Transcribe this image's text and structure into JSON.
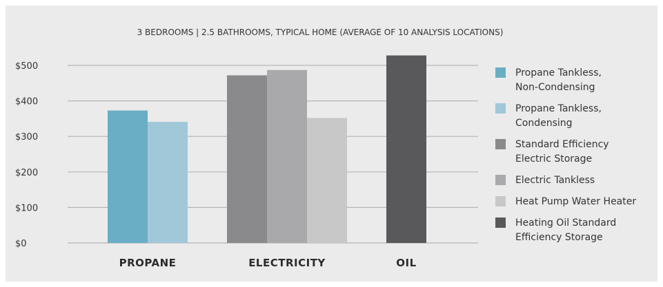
{
  "chart_data": {
    "type": "bar",
    "title": "3 BEDROOMS | 2.5 BATHROOMS, TYPICAL HOME (AVERAGE OF 10 ANALYSIS LOCATIONS)",
    "xlabel": "",
    "ylabel": "",
    "ylim": [
      0,
      500
    ],
    "yticks": [
      "$0",
      "$100",
      "$200",
      "$300",
      "$400",
      "$500"
    ],
    "grid": true,
    "legend_position": "right",
    "groups": [
      {
        "label": "PROPANE",
        "bars": [
          {
            "series": 0,
            "value": 373
          },
          {
            "series": 1,
            "value": 341
          }
        ]
      },
      {
        "label": "ELECTRICITY",
        "bars": [
          {
            "series": 2,
            "value": 472
          },
          {
            "series": 3,
            "value": 487
          },
          {
            "series": 4,
            "value": 352
          }
        ]
      },
      {
        "label": "OIL",
        "bars": [
          {
            "series": 5,
            "value": 528
          }
        ]
      }
    ],
    "series": [
      {
        "name": "Propane Tankless, Non-Condensing",
        "legend_lines": [
          "Propane Tankless,",
          "Non-Condensing"
        ],
        "color": "#6aaec6"
      },
      {
        "name": "Propane Tankless, Condensing",
        "legend_lines": [
          "Propane Tankless,",
          "Condensing"
        ],
        "color": "#a0c8d9"
      },
      {
        "name": "Standard Efficiency Electric Storage",
        "legend_lines": [
          "Standard Efficiency",
          "Electric Storage"
        ],
        "color": "#8a898c"
      },
      {
        "name": "Electric Tankless",
        "legend_lines": [
          "Electric Tankless"
        ],
        "color": "#a9a8aa"
      },
      {
        "name": "Heat Pump Water Heater",
        "legend_lines": [
          "Heat Pump Water Heater"
        ],
        "color": "#c8c8c8"
      },
      {
        "name": "Heating Oil Standard Efficiency Storage",
        "legend_lines": [
          "Heating Oil Standard",
          "Efficiency Storage"
        ],
        "color": "#59585b"
      }
    ]
  }
}
